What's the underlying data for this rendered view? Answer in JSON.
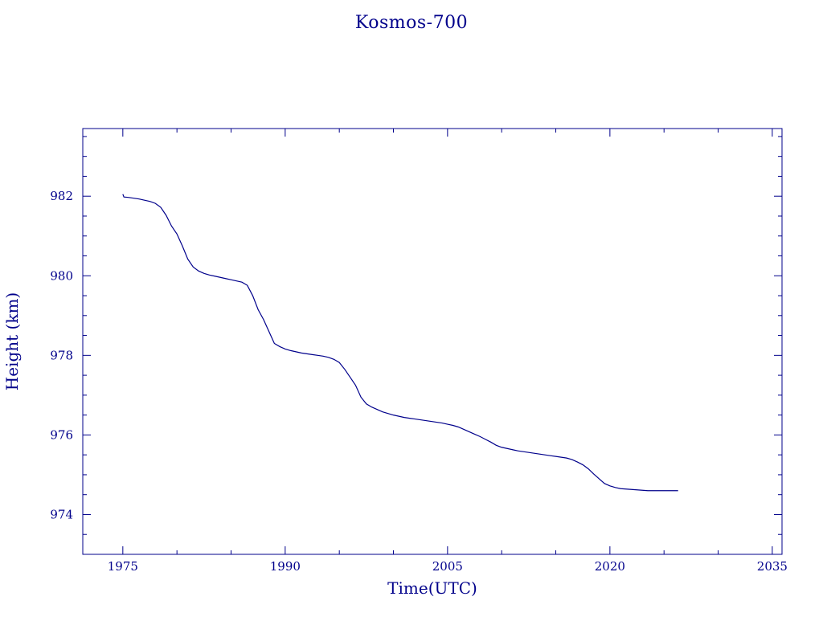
{
  "chart_data": {
    "type": "line",
    "title": "Kosmos-700",
    "xlabel": "Time(UTC)",
    "ylabel": "Height (km)",
    "xlim": [
      1971.3,
      2035.9
    ],
    "ylim": [
      973.0,
      983.7
    ],
    "x_ticks": [
      1975,
      1990,
      2005,
      2020,
      2035
    ],
    "x_tick_labels": [
      "1975",
      "1990",
      "2005",
      "2020",
      "2035"
    ],
    "y_ticks": [
      974,
      976,
      978,
      980,
      982
    ],
    "y_tick_labels": [
      "974",
      "976",
      "978",
      "980",
      "982"
    ],
    "grid": false,
    "colors": {
      "line": "#00008b",
      "axes": "#00008b",
      "text": "#00008b"
    },
    "series": [
      {
        "x": [
          1975.0,
          1975.1,
          1975.5,
          1976.0,
          1976.5,
          1977.0,
          1977.5,
          1978.0,
          1978.5,
          1979.0,
          1979.5,
          1980.0,
          1980.5,
          1981.0,
          1981.5,
          1982.0,
          1982.5,
          1983.0,
          1983.5,
          1984.0,
          1984.5,
          1985.0,
          1985.5,
          1986.0,
          1986.5,
          1987.0,
          1987.5,
          1988.0,
          1988.5,
          1989.0,
          1989.5,
          1990.0,
          1990.5,
          1991.0,
          1991.5,
          1992.0,
          1992.5,
          1993.0,
          1993.5,
          1994.0,
          1994.5,
          1995.0,
          1995.5,
          1996.0,
          1996.5,
          1997.0,
          1997.5,
          1998.0,
          1998.5,
          1999.0,
          1999.5,
          2000.0,
          2000.5,
          2001.0,
          2001.5,
          2002.0,
          2002.5,
          2003.0,
          2003.5,
          2004.0,
          2004.5,
          2005.0,
          2005.5,
          2006.0,
          2006.5,
          2007.0,
          2007.5,
          2008.0,
          2008.5,
          2009.0,
          2009.5,
          2010.0,
          2010.5,
          2011.0,
          2011.5,
          2012.0,
          2012.5,
          2013.0,
          2013.5,
          2014.0,
          2014.5,
          2015.0,
          2015.5,
          2016.0,
          2016.5,
          2017.0,
          2017.5,
          2018.0,
          2018.5,
          2019.0,
          2019.5,
          2020.0,
          2020.5,
          2021.0,
          2021.5,
          2022.0,
          2022.5,
          2023.0,
          2023.5,
          2024.0,
          2024.5,
          2025.0,
          2025.5,
          2026.0,
          2026.3
        ],
        "y": [
          982.05,
          981.98,
          981.97,
          981.95,
          981.93,
          981.9,
          981.87,
          981.82,
          981.72,
          981.52,
          981.25,
          981.05,
          980.75,
          980.42,
          980.22,
          980.12,
          980.06,
          980.02,
          979.99,
          979.96,
          979.93,
          979.9,
          979.87,
          979.84,
          979.76,
          979.5,
          979.15,
          978.9,
          978.6,
          978.3,
          978.22,
          978.16,
          978.12,
          978.09,
          978.06,
          978.04,
          978.02,
          978.0,
          977.98,
          977.95,
          977.9,
          977.82,
          977.65,
          977.45,
          977.25,
          976.95,
          976.78,
          976.7,
          976.64,
          976.58,
          976.54,
          976.5,
          976.47,
          976.44,
          976.42,
          976.4,
          976.38,
          976.36,
          976.34,
          976.32,
          976.3,
          976.27,
          976.24,
          976.2,
          976.14,
          976.08,
          976.02,
          975.96,
          975.89,
          975.82,
          975.74,
          975.69,
          975.66,
          975.63,
          975.6,
          975.58,
          975.56,
          975.54,
          975.52,
          975.5,
          975.48,
          975.46,
          975.44,
          975.42,
          975.38,
          975.32,
          975.25,
          975.15,
          975.02,
          974.9,
          974.78,
          974.72,
          974.68,
          974.65,
          974.64,
          974.63,
          974.62,
          974.61,
          974.6,
          974.6,
          974.6,
          974.6,
          974.6,
          974.6,
          974.6
        ]
      }
    ]
  }
}
